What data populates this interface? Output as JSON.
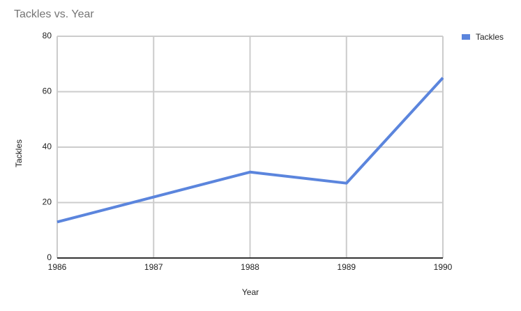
{
  "chart_data": {
    "type": "line",
    "title": "Tackles vs. Year",
    "x_label": "Year",
    "y_label": "Tackles",
    "x": [
      1986,
      1987,
      1988,
      1989,
      1990
    ],
    "series": [
      {
        "name": "Tackles",
        "color": "#5b85dd",
        "values": [
          13,
          22,
          31,
          27,
          65
        ]
      }
    ],
    "xlim": [
      1986,
      1990
    ],
    "xticks": [
      1986,
      1987,
      1988,
      1989,
      1990
    ],
    "ylim": [
      0,
      80
    ],
    "yticks": [
      0,
      20,
      40,
      60,
      80
    ],
    "grid": true,
    "legend": "top-right"
  }
}
